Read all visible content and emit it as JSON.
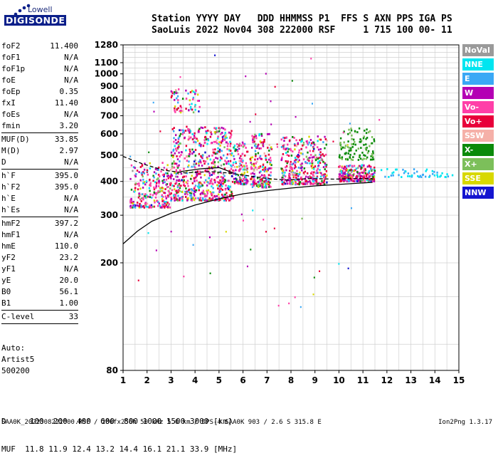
{
  "logo": {
    "top_text": "Lowell",
    "main_text": "DIGISONDE"
  },
  "header": {
    "line1": "Station YYYY DAY   DDD HHMMSS P1  FFS S AXN PPS IGA PS",
    "line2": "SaoLuis 2022 Nov04 308 222000 RSF     1 715 100 00- 11"
  },
  "params": [
    {
      "group": [
        {
          "name": "foF2",
          "value": "11.400"
        },
        {
          "name": "foF1",
          "value": "N/A"
        },
        {
          "name": "foF1p",
          "value": "N/A"
        },
        {
          "name": "foE",
          "value": "N/A"
        },
        {
          "name": "foEp",
          "value": "0.35"
        },
        {
          "name": "fxI",
          "value": "11.40"
        },
        {
          "name": "foEs",
          "value": "N/A"
        },
        {
          "name": "fmin",
          "value": "3.20"
        }
      ]
    },
    {
      "group": [
        {
          "name": "MUF(D)",
          "value": "33.85"
        },
        {
          "name": "M(D)",
          "value": "2.97"
        },
        {
          "name": "D",
          "value": "N/A"
        }
      ]
    },
    {
      "group": [
        {
          "name": "h`F",
          "value": "395.0"
        },
        {
          "name": "h`F2",
          "value": "395.0"
        },
        {
          "name": "h`E",
          "value": "N/A"
        },
        {
          "name": "h`Es",
          "value": "N/A"
        }
      ]
    },
    {
      "group": [
        {
          "name": "hmF2",
          "value": "397.2"
        },
        {
          "name": "hmF1",
          "value": "N/A"
        },
        {
          "name": "hmE",
          "value": "110.0"
        },
        {
          "name": "yF2",
          "value": "23.2"
        },
        {
          "name": "yF1",
          "value": "N/A"
        },
        {
          "name": "yE",
          "value": "20.0"
        },
        {
          "name": "B0",
          "value": "56.1"
        },
        {
          "name": "B1",
          "value": "1.00"
        }
      ]
    },
    {
      "group": [
        {
          "name": "C-level",
          "value": "33"
        }
      ]
    }
  ],
  "auto": [
    "Auto:",
    "Artist5",
    "500200"
  ],
  "muf_table": {
    "row1": "D     100  200  400  600  800 1000 1500 3000 [km]",
    "row2": "MUF  11.8 11.9 12.4 13.2 14.4 16.1 21.1 33.9 [MHz]"
  },
  "footer": {
    "left": "SAA0K_2022308222000.RSF / 280fx256h 50 kHz 5.0 km / DPS-4 SAA0K 903 / 2.6 S 315.8 E",
    "right": "Ion2Png 1.3.17"
  },
  "legend": [
    {
      "label": "NoVal",
      "color": "#9a9a9a"
    },
    {
      "label": "NNE",
      "color": "#00e5f0"
    },
    {
      "label": "E",
      "color": "#3aa8f5"
    },
    {
      "label": "W",
      "color": "#b400b4"
    },
    {
      "label": "Vo-",
      "color": "#ff3fa8"
    },
    {
      "label": "Vo+",
      "color": "#e8003a"
    },
    {
      "label": "SSW",
      "color": "#f5b0a8"
    },
    {
      "label": "X-",
      "color": "#0a8a0a"
    },
    {
      "label": "X+",
      "color": "#7cbf5a"
    },
    {
      "label": "SSE",
      "color": "#d8d800"
    },
    {
      "label": "NNW",
      "color": "#1414d0"
    }
  ],
  "chart_data": {
    "type": "scatter",
    "xlim": [
      1,
      15
    ],
    "ylim": [
      80,
      1280
    ],
    "x_ticks": [
      1,
      2,
      3,
      4,
      5,
      6,
      7,
      8,
      9,
      10,
      11,
      12,
      13,
      14,
      15
    ],
    "y_ticks": [
      80,
      200,
      300,
      400,
      500,
      600,
      700,
      800,
      900,
      1000,
      1100,
      1280
    ],
    "y_scale": "log",
    "grid": true,
    "ionogram_clusters": [
      {
        "x_range": [
          1.3,
          3.0
        ],
        "y_range": [
          320,
          470
        ]
      },
      {
        "x_range": [
          3.0,
          5.6
        ],
        "y_range": [
          340,
          640
        ]
      },
      {
        "x_range": [
          5.6,
          6.2
        ],
        "y_range": [
          390,
          560
        ]
      },
      {
        "x_range": [
          6.3,
          7.2
        ],
        "y_range": [
          380,
          600
        ]
      },
      {
        "x_range": [
          7.6,
          9.5
        ],
        "y_range": [
          390,
          590
        ]
      },
      {
        "x_range": [
          10.0,
          11.5
        ],
        "y_range": [
          400,
          460
        ]
      },
      {
        "x_range": [
          10.0,
          11.5
        ],
        "y_range": [
          480,
          630
        ]
      },
      {
        "x_range": [
          3.0,
          4.2
        ],
        "y_range": [
          720,
          880
        ]
      },
      {
        "x_range": [
          11.6,
          14.8
        ],
        "y_range": [
          415,
          445
        ]
      }
    ],
    "trace_series": [
      {
        "style": "dashed",
        "x": [
          1.0,
          1.8,
          2.7,
          3.6,
          4.6,
          5.4,
          6.2,
          7.0,
          7.8,
          8.8,
          9.8,
          10.8,
          11.4
        ],
        "y": [
          495,
          465,
          440,
          430,
          435,
          430,
          420,
          410,
          405,
          410,
          408,
          410,
          410
        ]
      },
      {
        "style": "solid",
        "x": [
          1.0,
          1.6,
          2.2,
          3.0,
          4.0,
          5.0,
          6.0,
          7.0,
          8.0,
          9.0,
          10.0,
          11.0,
          11.4
        ],
        "y": [
          235,
          262,
          285,
          305,
          327,
          345,
          360,
          370,
          378,
          385,
          390,
          395,
          397
        ]
      },
      {
        "style": "solid",
        "x": [
          3.4,
          4.2,
          5.0,
          5.6
        ],
        "y": [
          435,
          445,
          450,
          430
        ]
      }
    ]
  }
}
